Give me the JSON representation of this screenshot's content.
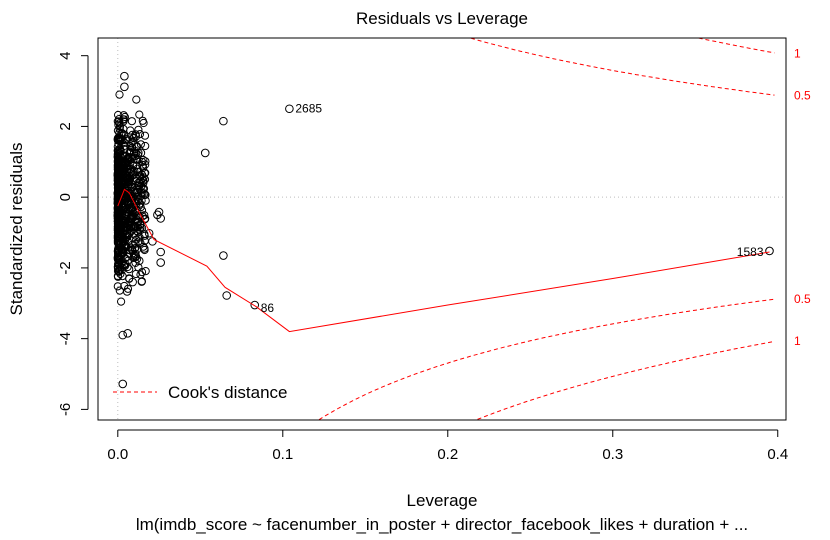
{
  "chart_data": {
    "type": "scatter",
    "title": "Residuals vs Leverage",
    "xlabel": "Leverage",
    "ylabel": "Standardized residuals",
    "subtitle": "lm(imdb_score ~ facenumber_in_poster + director_facebook_likes + duration + ...",
    "xlim": [
      -0.012,
      0.405
    ],
    "ylim": [
      -6.3,
      4.5
    ],
    "xticks": [
      "0.0",
      "0.1",
      "0.2",
      "0.3",
      "0.4"
    ],
    "xtick_values": [
      0.0,
      0.1,
      0.2,
      0.3,
      0.4
    ],
    "yticks": [
      "-6",
      "-4",
      "-2",
      "0",
      "2",
      "4"
    ],
    "ytick_values": [
      -6,
      -4,
      -2,
      0,
      2,
      4
    ],
    "grid": false,
    "reference_lines": {
      "x": 0,
      "y": 0,
      "style": "dotted gray"
    },
    "legend": {
      "position": "bottom-left",
      "entries": [
        {
          "label": "Cook's distance",
          "style": "dashed red"
        }
      ]
    },
    "cooks_contour_labels": {
      "upper": [
        "1",
        "0.5"
      ],
      "lower": [
        "0.5",
        "1"
      ]
    },
    "labeled_points": [
      {
        "label": "2685",
        "x": 0.104,
        "y": 2.5
      },
      {
        "label": "86",
        "x": 0.083,
        "y": -3.05
      },
      {
        "label": "1583",
        "x": 0.395,
        "y": -1.52
      }
    ],
    "outlier_points": [
      {
        "x": 0.064,
        "y": 2.15
      },
      {
        "x": 0.053,
        "y": 1.25
      },
      {
        "x": 0.064,
        "y": -1.65
      },
      {
        "x": 0.066,
        "y": -2.78
      },
      {
        "x": 0.003,
        "y": -5.28
      },
      {
        "x": 0.026,
        "y": -1.55
      },
      {
        "x": 0.026,
        "y": -1.85
      },
      {
        "x": 0.024,
        "y": -0.5
      },
      {
        "x": 0.026,
        "y": -0.6
      },
      {
        "x": 0.025,
        "y": -0.42
      },
      {
        "x": 0.021,
        "y": -1.25
      },
      {
        "x": 0.019,
        "y": -1.02
      },
      {
        "x": 0.016,
        "y": -1.45
      },
      {
        "x": 0.015,
        "y": 0.9
      },
      {
        "x": 0.014,
        "y": 1.25
      },
      {
        "x": 0.011,
        "y": 1.72
      },
      {
        "x": 0.009,
        "y": -2.4
      },
      {
        "x": 0.004,
        "y": 3.42
      },
      {
        "x": 0.004,
        "y": 3.12
      },
      {
        "x": 0.003,
        "y": -3.9
      },
      {
        "x": 0.006,
        "y": -3.85
      },
      {
        "x": 0.011,
        "y": -1.68
      },
      {
        "x": 0.013,
        "y": -1.8
      }
    ],
    "smooth_line": [
      {
        "x": 0.0,
        "y": -0.25
      },
      {
        "x": 0.004,
        "y": 0.22
      },
      {
        "x": 0.007,
        "y": 0.12
      },
      {
        "x": 0.012,
        "y": -0.35
      },
      {
        "x": 0.022,
        "y": -1.2
      },
      {
        "x": 0.054,
        "y": -1.95
      },
      {
        "x": 0.065,
        "y": -2.55
      },
      {
        "x": 0.084,
        "y": -3.1
      },
      {
        "x": 0.104,
        "y": -3.8
      },
      {
        "x": 0.2,
        "y": -3.05
      },
      {
        "x": 0.3,
        "y": -2.3
      },
      {
        "x": 0.395,
        "y": -1.55
      }
    ],
    "colors": {
      "points": "#000000",
      "smooth": "#ff0000",
      "cook": "#ff0000",
      "reference": "#bebebe"
    }
  }
}
